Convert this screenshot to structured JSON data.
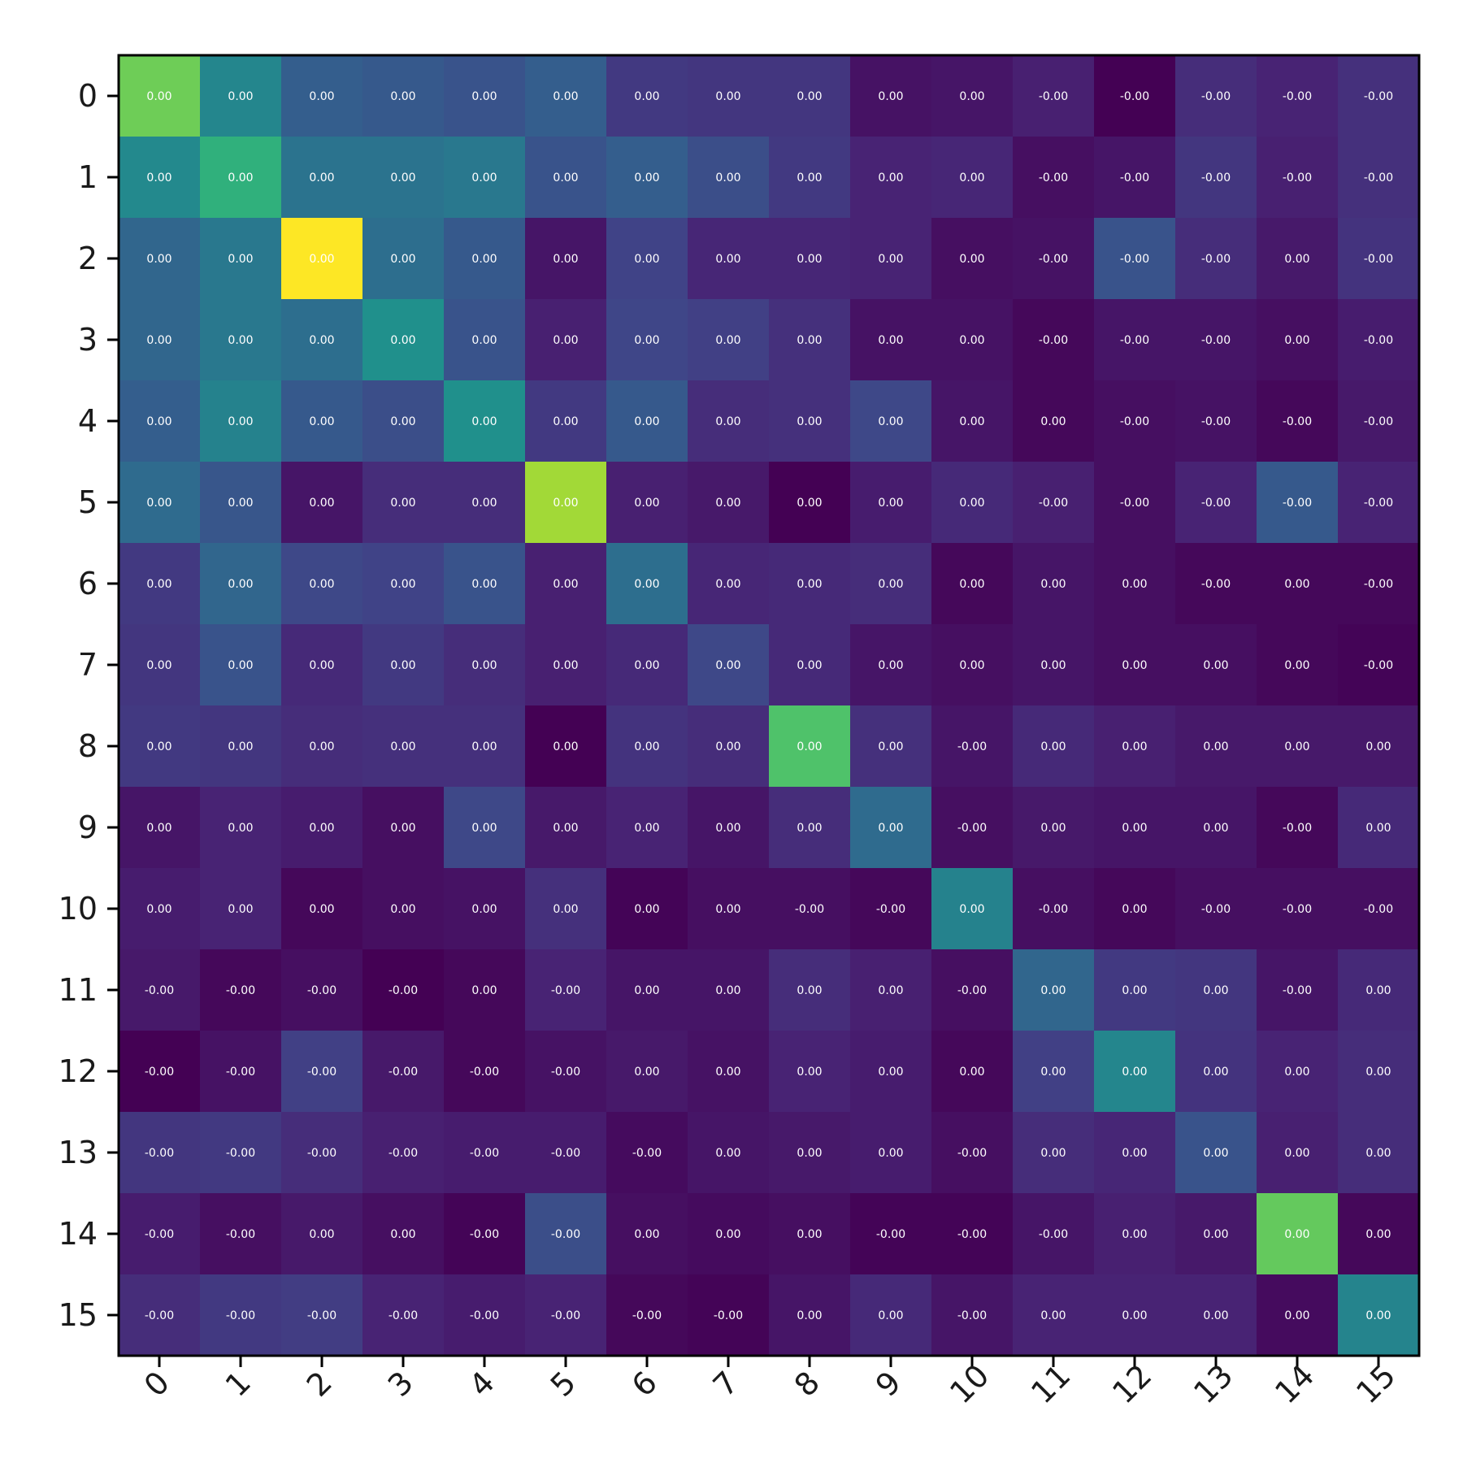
{
  "chart_data": {
    "type": "heatmap",
    "title": "",
    "xlabel": "",
    "ylabel": "",
    "colormap": "viridis",
    "x_categories": [
      "0",
      "1",
      "2",
      "3",
      "4",
      "5",
      "6",
      "7",
      "8",
      "9",
      "10",
      "11",
      "12",
      "13",
      "14",
      "15"
    ],
    "y_categories": [
      "0",
      "1",
      "2",
      "3",
      "4",
      "5",
      "6",
      "7",
      "8",
      "9",
      "10",
      "11",
      "12",
      "13",
      "14",
      "15"
    ],
    "x_tick_rotation_deg": -45,
    "intensity": [
      [
        0.78,
        0.46,
        0.3,
        0.28,
        0.26,
        0.3,
        0.17,
        0.16,
        0.16,
        0.05,
        0.06,
        0.09,
        0.0,
        0.13,
        0.1,
        0.14
      ],
      [
        0.47,
        0.64,
        0.38,
        0.38,
        0.4,
        0.26,
        0.3,
        0.24,
        0.17,
        0.1,
        0.11,
        0.04,
        0.06,
        0.16,
        0.09,
        0.14
      ],
      [
        0.33,
        0.4,
        1.0,
        0.36,
        0.28,
        0.06,
        0.2,
        0.11,
        0.11,
        0.1,
        0.04,
        0.05,
        0.26,
        0.13,
        0.07,
        0.15
      ],
      [
        0.33,
        0.4,
        0.36,
        0.5,
        0.26,
        0.09,
        0.21,
        0.19,
        0.14,
        0.05,
        0.05,
        0.02,
        0.06,
        0.06,
        0.04,
        0.08
      ],
      [
        0.3,
        0.44,
        0.28,
        0.24,
        0.5,
        0.17,
        0.28,
        0.13,
        0.14,
        0.22,
        0.06,
        0.02,
        0.04,
        0.05,
        0.02,
        0.07
      ],
      [
        0.35,
        0.27,
        0.06,
        0.13,
        0.13,
        0.86,
        0.09,
        0.07,
        0.0,
        0.08,
        0.12,
        0.09,
        0.04,
        0.1,
        0.28,
        0.1
      ],
      [
        0.17,
        0.33,
        0.22,
        0.2,
        0.26,
        0.09,
        0.36,
        0.11,
        0.12,
        0.13,
        0.02,
        0.06,
        0.04,
        0.02,
        0.02,
        0.02
      ],
      [
        0.16,
        0.26,
        0.12,
        0.17,
        0.13,
        0.09,
        0.12,
        0.22,
        0.12,
        0.06,
        0.04,
        0.06,
        0.04,
        0.04,
        0.02,
        0.01
      ],
      [
        0.17,
        0.16,
        0.13,
        0.14,
        0.14,
        0.0,
        0.15,
        0.13,
        0.72,
        0.14,
        0.06,
        0.12,
        0.09,
        0.07,
        0.07,
        0.07
      ],
      [
        0.06,
        0.1,
        0.08,
        0.04,
        0.22,
        0.07,
        0.1,
        0.06,
        0.13,
        0.35,
        0.04,
        0.07,
        0.06,
        0.06,
        0.02,
        0.12
      ],
      [
        0.08,
        0.1,
        0.02,
        0.04,
        0.05,
        0.14,
        0.01,
        0.04,
        0.04,
        0.02,
        0.44,
        0.04,
        0.02,
        0.04,
        0.04,
        0.04
      ],
      [
        0.07,
        0.02,
        0.04,
        0.0,
        0.02,
        0.1,
        0.06,
        0.06,
        0.13,
        0.09,
        0.04,
        0.33,
        0.17,
        0.16,
        0.06,
        0.12
      ],
      [
        0.0,
        0.05,
        0.19,
        0.07,
        0.02,
        0.05,
        0.07,
        0.05,
        0.1,
        0.08,
        0.02,
        0.19,
        0.46,
        0.15,
        0.1,
        0.13
      ],
      [
        0.16,
        0.17,
        0.13,
        0.09,
        0.08,
        0.08,
        0.03,
        0.06,
        0.07,
        0.08,
        0.04,
        0.13,
        0.11,
        0.26,
        0.09,
        0.13
      ],
      [
        0.08,
        0.04,
        0.07,
        0.04,
        0.01,
        0.24,
        0.04,
        0.03,
        0.04,
        0.01,
        0.01,
        0.06,
        0.09,
        0.07,
        0.76,
        0.02
      ],
      [
        0.13,
        0.17,
        0.18,
        0.1,
        0.08,
        0.1,
        0.02,
        0.01,
        0.06,
        0.12,
        0.06,
        0.1,
        0.1,
        0.1,
        0.03,
        0.45
      ]
    ],
    "cell_labels": [
      [
        "0.00",
        "0.00",
        "0.00",
        "0.00",
        "0.00",
        "0.00",
        "0.00",
        "0.00",
        "0.00",
        "0.00",
        "0.00",
        "-0.00",
        "-0.00",
        "-0.00",
        "-0.00",
        "-0.00"
      ],
      [
        "0.00",
        "0.00",
        "0.00",
        "0.00",
        "0.00",
        "0.00",
        "0.00",
        "0.00",
        "0.00",
        "0.00",
        "0.00",
        "-0.00",
        "-0.00",
        "-0.00",
        "-0.00",
        "-0.00"
      ],
      [
        "0.00",
        "0.00",
        "0.00",
        "0.00",
        "0.00",
        "0.00",
        "0.00",
        "0.00",
        "0.00",
        "0.00",
        "0.00",
        "-0.00",
        "-0.00",
        "-0.00",
        "0.00",
        "-0.00"
      ],
      [
        "0.00",
        "0.00",
        "0.00",
        "0.00",
        "0.00",
        "0.00",
        "0.00",
        "0.00",
        "0.00",
        "0.00",
        "0.00",
        "-0.00",
        "-0.00",
        "-0.00",
        "0.00",
        "-0.00"
      ],
      [
        "0.00",
        "0.00",
        "0.00",
        "0.00",
        "0.00",
        "0.00",
        "0.00",
        "0.00",
        "0.00",
        "0.00",
        "0.00",
        "0.00",
        "-0.00",
        "-0.00",
        "-0.00",
        "-0.00"
      ],
      [
        "0.00",
        "0.00",
        "0.00",
        "0.00",
        "0.00",
        "0.00",
        "0.00",
        "0.00",
        "0.00",
        "0.00",
        "0.00",
        "-0.00",
        "-0.00",
        "-0.00",
        "-0.00",
        "-0.00"
      ],
      [
        "0.00",
        "0.00",
        "0.00",
        "0.00",
        "0.00",
        "0.00",
        "0.00",
        "0.00",
        "0.00",
        "0.00",
        "0.00",
        "0.00",
        "0.00",
        "-0.00",
        "0.00",
        "-0.00"
      ],
      [
        "0.00",
        "0.00",
        "0.00",
        "0.00",
        "0.00",
        "0.00",
        "0.00",
        "0.00",
        "0.00",
        "0.00",
        "0.00",
        "0.00",
        "0.00",
        "0.00",
        "0.00",
        "-0.00"
      ],
      [
        "0.00",
        "0.00",
        "0.00",
        "0.00",
        "0.00",
        "0.00",
        "0.00",
        "0.00",
        "0.00",
        "0.00",
        "-0.00",
        "0.00",
        "0.00",
        "0.00",
        "0.00",
        "0.00"
      ],
      [
        "0.00",
        "0.00",
        "0.00",
        "0.00",
        "0.00",
        "0.00",
        "0.00",
        "0.00",
        "0.00",
        "0.00",
        "-0.00",
        "0.00",
        "0.00",
        "0.00",
        "-0.00",
        "0.00"
      ],
      [
        "0.00",
        "0.00",
        "0.00",
        "0.00",
        "0.00",
        "0.00",
        "0.00",
        "0.00",
        "-0.00",
        "-0.00",
        "0.00",
        "-0.00",
        "0.00",
        "-0.00",
        "-0.00",
        "-0.00"
      ],
      [
        "-0.00",
        "-0.00",
        "-0.00",
        "-0.00",
        "0.00",
        "-0.00",
        "0.00",
        "0.00",
        "0.00",
        "0.00",
        "-0.00",
        "0.00",
        "0.00",
        "0.00",
        "-0.00",
        "0.00"
      ],
      [
        "-0.00",
        "-0.00",
        "-0.00",
        "-0.00",
        "-0.00",
        "-0.00",
        "0.00",
        "0.00",
        "0.00",
        "0.00",
        "0.00",
        "0.00",
        "0.00",
        "0.00",
        "0.00",
        "0.00"
      ],
      [
        "-0.00",
        "-0.00",
        "-0.00",
        "-0.00",
        "-0.00",
        "-0.00",
        "-0.00",
        "0.00",
        "0.00",
        "0.00",
        "-0.00",
        "0.00",
        "0.00",
        "0.00",
        "0.00",
        "0.00"
      ],
      [
        "-0.00",
        "-0.00",
        "0.00",
        "0.00",
        "-0.00",
        "-0.00",
        "0.00",
        "0.00",
        "0.00",
        "-0.00",
        "-0.00",
        "-0.00",
        "0.00",
        "0.00",
        "0.00",
        "0.00"
      ],
      [
        "-0.00",
        "-0.00",
        "-0.00",
        "-0.00",
        "-0.00",
        "-0.00",
        "-0.00",
        "-0.00",
        "0.00",
        "0.00",
        "-0.00",
        "0.00",
        "0.00",
        "0.00",
        "0.00",
        "0.00"
      ]
    ]
  }
}
